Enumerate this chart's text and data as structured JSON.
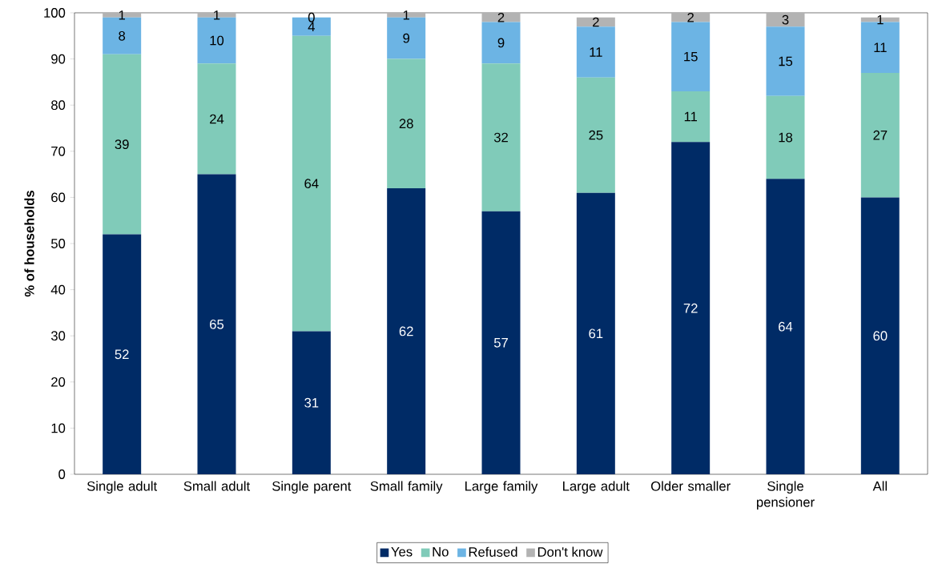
{
  "chart_data": {
    "type": "bar",
    "stacked": true,
    "ylabel": "% of households",
    "categories": [
      "Single adult",
      "Small adult",
      "Single parent",
      "Small family",
      "Large family",
      "Large adult",
      "Older smaller",
      "Single pensioner",
      "All"
    ],
    "series": [
      {
        "name": "Yes",
        "color": "#002b66",
        "values": [
          52,
          65,
          31,
          62,
          57,
          61,
          72,
          64,
          60
        ]
      },
      {
        "name": "No",
        "color": "#80cbb9",
        "values": [
          39,
          24,
          64,
          28,
          32,
          25,
          11,
          18,
          27
        ]
      },
      {
        "name": "Refused",
        "color": "#6cb4e4",
        "values": [
          8,
          10,
          4,
          9,
          9,
          11,
          15,
          15,
          11
        ]
      },
      {
        "name": "Don't know",
        "color": "#b3b3b3",
        "values": [
          1,
          1,
          0,
          1,
          2,
          2,
          2,
          3,
          1
        ]
      }
    ],
    "ylim": [
      0,
      100
    ],
    "yticks": [
      0,
      10,
      20,
      30,
      40,
      50,
      60,
      70,
      80,
      90,
      100
    ],
    "data_labels": true,
    "legend": "bottom",
    "grid": false
  }
}
